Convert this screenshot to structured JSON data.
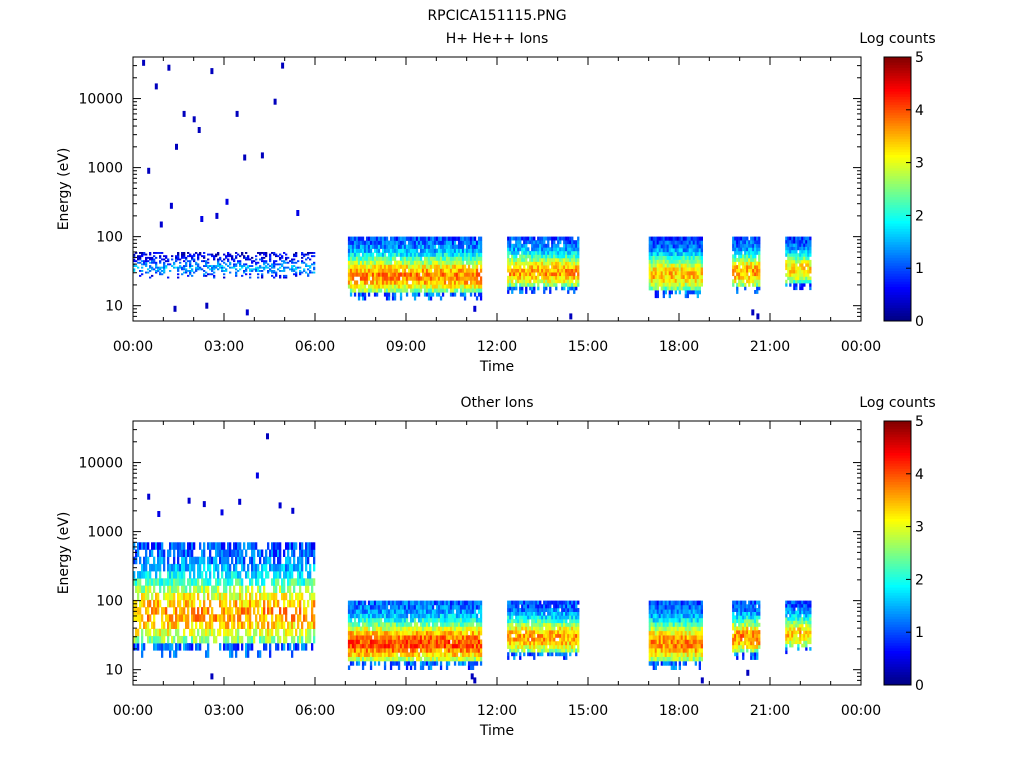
{
  "figure_title": "RPCICA151115.PNG",
  "chart_data": [
    {
      "type": "heatmap",
      "title": "H+ He++ Ions",
      "xlabel": "Time",
      "ylabel": "Energy (eV)",
      "yscale": "log",
      "xlim": [
        "00:00",
        "24:00"
      ],
      "ylim": [
        6,
        40000
      ],
      "xticks": [
        "00:00",
        "03:00",
        "06:00",
        "09:00",
        "12:00",
        "15:00",
        "18:00",
        "21:00",
        "00:00"
      ],
      "yticks": [
        "10",
        "100",
        "1000",
        "10000"
      ],
      "colorbar": {
        "title": "Log counts",
        "range": [
          0,
          5
        ],
        "ticks": [
          "0",
          "1",
          "2",
          "3",
          "4",
          "5"
        ],
        "colormap": "jet"
      },
      "blocks": [
        {
          "start": "00:00",
          "end": "06:00",
          "emin": 25,
          "emax": 60,
          "peak": 1.4,
          "sparse": 0.55
        },
        {
          "start": "07:05",
          "end": "11:30",
          "emin": 12,
          "emax": 100,
          "peak": 3.7,
          "sparse": 0.05
        },
        {
          "start": "12:20",
          "end": "14:40",
          "emin": 15,
          "emax": 100,
          "peak": 3.6,
          "sparse": 0.05
        },
        {
          "start": "17:00",
          "end": "18:45",
          "emin": 13,
          "emax": 100,
          "peak": 3.4,
          "sparse": 0.0
        },
        {
          "start": "19:45",
          "end": "20:40",
          "emin": 15,
          "emax": 100,
          "peak": 3.6,
          "sparse": 0.05
        },
        {
          "start": "21:30",
          "end": "22:20",
          "emin": 17,
          "emax": 100,
          "peak": 3.3,
          "sparse": 0.05
        }
      ],
      "scatter_counts": [
        {
          "t": "00:20",
          "e": 33000,
          "v": 0.3
        },
        {
          "t": "01:10",
          "e": 28000,
          "v": 0.3
        },
        {
          "t": "02:35",
          "e": 25000,
          "v": 0.3
        },
        {
          "t": "04:55",
          "e": 30000,
          "v": 0.3
        },
        {
          "t": "00:45",
          "e": 15000,
          "v": 0.3
        },
        {
          "t": "01:40",
          "e": 6000,
          "v": 0.3
        },
        {
          "t": "02:00",
          "e": 5000,
          "v": 0.3
        },
        {
          "t": "03:25",
          "e": 6000,
          "v": 0.3
        },
        {
          "t": "04:40",
          "e": 9000,
          "v": 0.3
        },
        {
          "t": "01:25",
          "e": 2000,
          "v": 0.3
        },
        {
          "t": "02:10",
          "e": 3500,
          "v": 0.3
        },
        {
          "t": "03:40",
          "e": 1400,
          "v": 0.3
        },
        {
          "t": "00:30",
          "e": 900,
          "v": 0.3
        },
        {
          "t": "04:15",
          "e": 1500,
          "v": 0.3
        },
        {
          "t": "01:15",
          "e": 280,
          "v": 0.4
        },
        {
          "t": "02:45",
          "e": 200,
          "v": 0.4
        },
        {
          "t": "03:05",
          "e": 320,
          "v": 0.5
        },
        {
          "t": "05:25",
          "e": 220,
          "v": 0.5
        },
        {
          "t": "00:55",
          "e": 150,
          "v": 0.4
        },
        {
          "t": "02:15",
          "e": 180,
          "v": 0.5
        },
        {
          "t": "01:22",
          "e": 9,
          "v": 0.3
        },
        {
          "t": "02:25",
          "e": 10,
          "v": 0.3
        },
        {
          "t": "03:45",
          "e": 8,
          "v": 0.4
        },
        {
          "t": "11:15",
          "e": 9,
          "v": 0.4
        },
        {
          "t": "14:25",
          "e": 7,
          "v": 0.3
        },
        {
          "t": "20:25",
          "e": 8,
          "v": 0.3
        },
        {
          "t": "20:35",
          "e": 7,
          "v": 0.3
        }
      ]
    },
    {
      "type": "heatmap",
      "title": "Other Ions",
      "xlabel": "Time",
      "ylabel": "Energy (eV)",
      "yscale": "log",
      "xlim": [
        "00:00",
        "24:00"
      ],
      "ylim": [
        6,
        40000
      ],
      "xticks": [
        "00:00",
        "03:00",
        "06:00",
        "09:00",
        "12:00",
        "15:00",
        "18:00",
        "21:00",
        "00:00"
      ],
      "yticks": [
        "10",
        "100",
        "1000",
        "10000"
      ],
      "colorbar": {
        "title": "Log counts",
        "range": [
          0,
          5
        ],
        "ticks": [
          "0",
          "1",
          "2",
          "3",
          "4",
          "5"
        ],
        "colormap": "jet"
      },
      "blocks": [
        {
          "start": "00:00",
          "end": "06:00",
          "emin": 15,
          "emax": 700,
          "peak": 3.6,
          "sparse": 0.3
        },
        {
          "start": "07:05",
          "end": "11:30",
          "emin": 10,
          "emax": 100,
          "peak": 4.0,
          "sparse": 0.03
        },
        {
          "start": "12:20",
          "end": "14:40",
          "emin": 14,
          "emax": 100,
          "peak": 3.6,
          "sparse": 0.04
        },
        {
          "start": "17:00",
          "end": "18:45",
          "emin": 10,
          "emax": 100,
          "peak": 3.7,
          "sparse": 0.0
        },
        {
          "start": "19:45",
          "end": "20:40",
          "emin": 14,
          "emax": 100,
          "peak": 3.7,
          "sparse": 0.04
        },
        {
          "start": "21:30",
          "end": "22:20",
          "emin": 17,
          "emax": 100,
          "peak": 3.4,
          "sparse": 0.04
        }
      ],
      "scatter_counts": [
        {
          "t": "04:25",
          "e": 24000,
          "v": 0.3
        },
        {
          "t": "04:05",
          "e": 6500,
          "v": 0.5
        },
        {
          "t": "00:30",
          "e": 3200,
          "v": 0.4
        },
        {
          "t": "01:50",
          "e": 2800,
          "v": 0.4
        },
        {
          "t": "02:20",
          "e": 2500,
          "v": 0.4
        },
        {
          "t": "03:30",
          "e": 2700,
          "v": 0.4
        },
        {
          "t": "04:50",
          "e": 2400,
          "v": 0.4
        },
        {
          "t": "05:15",
          "e": 2000,
          "v": 0.4
        },
        {
          "t": "00:50",
          "e": 1800,
          "v": 0.5
        },
        {
          "t": "02:55",
          "e": 1900,
          "v": 0.5
        },
        {
          "t": "02:35",
          "e": 8,
          "v": 0.3
        },
        {
          "t": "11:10",
          "e": 8,
          "v": 0.3
        },
        {
          "t": "11:15",
          "e": 7,
          "v": 0.3
        },
        {
          "t": "18:45",
          "e": 7,
          "v": 0.3
        },
        {
          "t": "20:15",
          "e": 9,
          "v": 0.3
        }
      ]
    }
  ]
}
